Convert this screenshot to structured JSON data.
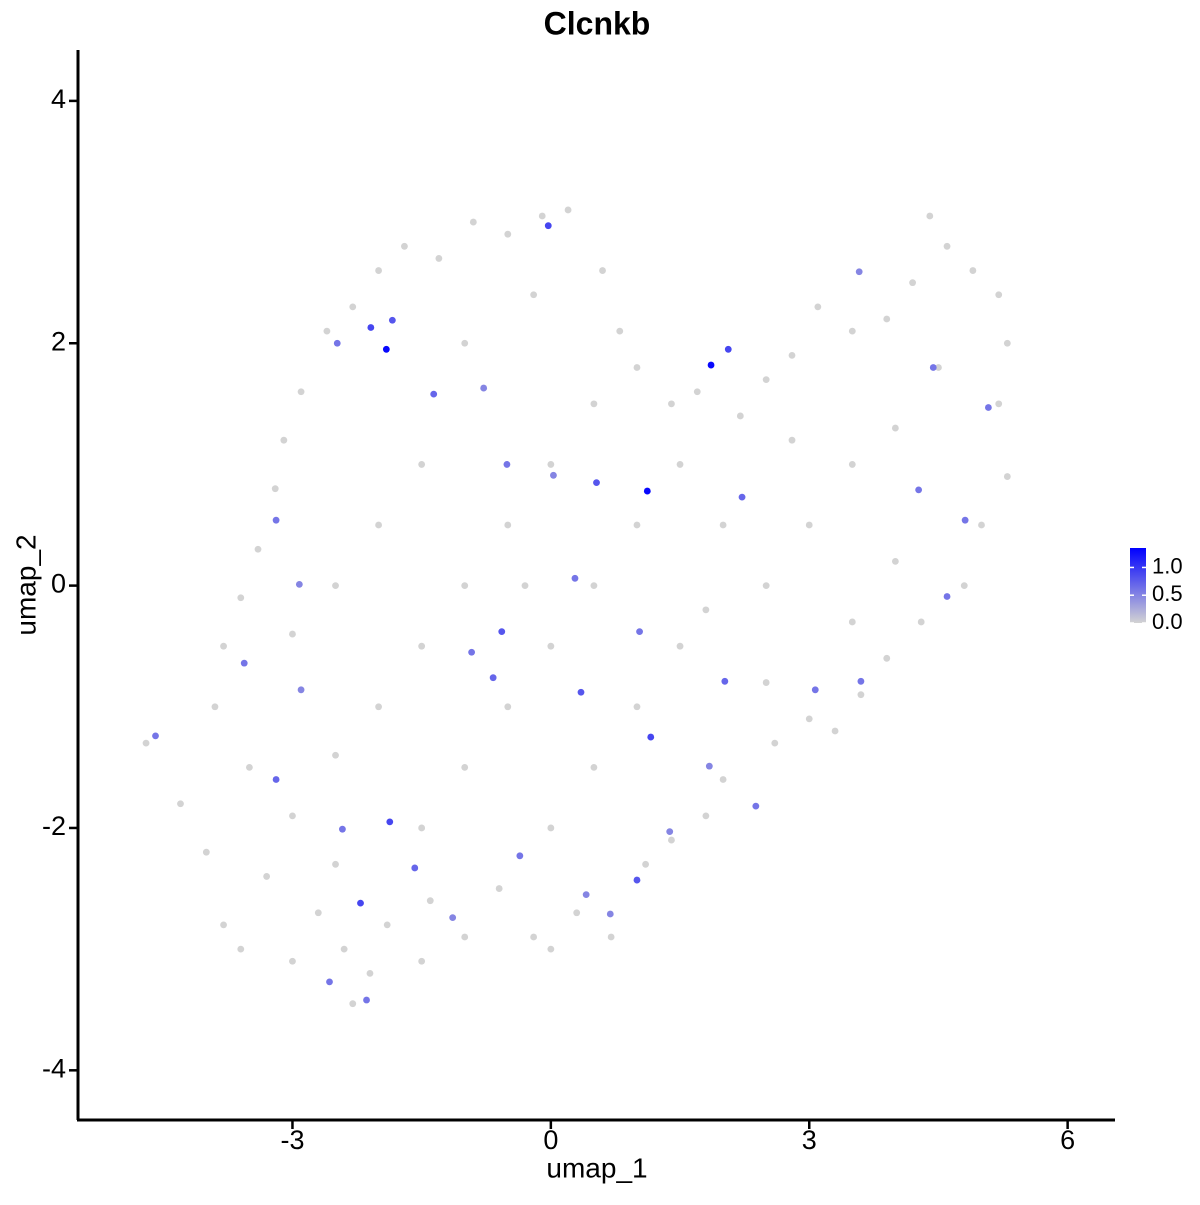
{
  "chart_data": {
    "type": "scatter",
    "title": "Clcnkb",
    "x_label": "umap_1",
    "y_label": "umap_2",
    "xlim": [
      -5.49,
      6.55
    ],
    "ylim": [
      -4.41,
      4.42
    ],
    "xticks": [
      -3,
      0,
      3,
      6
    ],
    "yticks": [
      -4,
      -2,
      0,
      2,
      4
    ],
    "color_low": "#d3d3d3",
    "color_high": "#0000ff",
    "color_lim": [
      0,
      1.35
    ],
    "color_ticks": [
      {
        "value": 0,
        "label": "0.0"
      },
      0.5,
      {
        "value": 1,
        "label": "1.0"
      }
    ],
    "x": [
      -4.7,
      -4.3,
      -4.0,
      -3.8,
      -3.6,
      -3.3,
      -3.0,
      -2.7,
      -2.4,
      -2.3,
      -2.1,
      -1.9,
      -1.5,
      -1.4,
      -1.0,
      -0.6,
      -0.2,
      0.0,
      0.3,
      0.7,
      1.1,
      1.4,
      1.8,
      2.0,
      2.6,
      3.0,
      3.3,
      3.6,
      3.9,
      4.3,
      4.8,
      5.0,
      5.3,
      5.2,
      5.3,
      5.2,
      4.9,
      4.6,
      4.4,
      4.2,
      3.9,
      3.5,
      3.1,
      2.8,
      2.5,
      2.2,
      1.7,
      1.4,
      1.0,
      0.8,
      0.6,
      0.2,
      -0.1,
      -0.5,
      -0.9,
      -1.3,
      -1.7,
      -2.0,
      -2.3,
      -2.6,
      -2.9,
      -3.1,
      -3.2,
      -3.4,
      -3.6,
      -3.8,
      -3.9,
      -3.5,
      -3.0,
      -2.5,
      -2.0,
      -1.5,
      -1.0,
      -0.5,
      0.0,
      0.5,
      -1.5,
      -2.0,
      -2.5,
      -1.0,
      -0.5,
      0.0,
      0.5,
      1.0,
      1.5,
      2.0,
      2.5,
      3.0,
      3.5,
      4.0,
      4.5,
      3.5,
      2.5,
      1.5,
      1.0,
      0.5,
      0.0,
      -1.5,
      -2.5,
      -3.0,
      -1.0,
      -0.2,
      2.8,
      4.0,
      1.8,
      -0.3,
      -1.91,
      1.86,
      1.12,
      -2.09,
      -1.84,
      -0.03,
      2.06,
      0.53,
      -0.57,
      0.35,
      1.16,
      1.0,
      -2.21,
      -1.87,
      -3.19,
      -4.59,
      -3.56,
      -3.19,
      -2.48,
      -1.36,
      -0.78,
      -0.51,
      0.03,
      0.28,
      1.03,
      2.02,
      3.07,
      3.6,
      4.6,
      4.27,
      4.44,
      3.58,
      2.38,
      -0.36,
      -1.58,
      -2.42,
      -2.57,
      -2.14,
      -1.14,
      0.41,
      0.69,
      -2.9,
      -2.92,
      -0.92,
      -0.67,
      2.22,
      5.08,
      4.81,
      1.38,
      1.84
    ],
    "y": [
      -1.3,
      -1.8,
      -2.2,
      -2.8,
      -3.0,
      -2.4,
      -3.1,
      -2.7,
      -3.0,
      -3.45,
      -3.2,
      -2.8,
      -3.1,
      -2.6,
      -2.9,
      -2.5,
      -2.9,
      -3.0,
      -2.7,
      -2.9,
      -2.3,
      -2.1,
      -1.9,
      -1.6,
      -1.3,
      -1.1,
      -1.2,
      -0.9,
      -0.6,
      -0.3,
      0.0,
      0.5,
      0.9,
      1.5,
      2.0,
      2.4,
      2.6,
      2.8,
      3.05,
      2.5,
      2.2,
      2.1,
      2.3,
      1.9,
      1.7,
      1.4,
      1.6,
      1.5,
      1.8,
      2.1,
      2.6,
      3.1,
      3.05,
      2.9,
      3.0,
      2.7,
      2.8,
      2.6,
      2.3,
      2.1,
      1.6,
      1.2,
      0.8,
      0.3,
      -0.1,
      -0.5,
      -1.0,
      -1.5,
      -1.9,
      -1.4,
      -1.0,
      -0.5,
      0.0,
      0.5,
      1.0,
      1.5,
      1.0,
      0.5,
      0.0,
      -1.5,
      -1.0,
      -0.5,
      0.0,
      0.5,
      1.0,
      0.5,
      0.0,
      0.5,
      1.0,
      1.3,
      1.8,
      -0.3,
      -0.8,
      -0.5,
      -1.0,
      -1.5,
      -2.0,
      -2.0,
      -2.3,
      -0.4,
      2.0,
      2.4,
      1.2,
      0.2,
      -0.2,
      0.0,
      1.95,
      1.82,
      0.78,
      2.13,
      2.19,
      2.97,
      1.95,
      0.85,
      -0.38,
      -0.88,
      -1.25,
      -2.43,
      -2.62,
      -1.95,
      -1.6,
      -1.24,
      -0.64,
      0.54,
      2.0,
      1.58,
      1.63,
      1.0,
      0.91,
      0.06,
      -0.38,
      -0.79,
      -0.86,
      -0.79,
      -0.09,
      0.79,
      1.8,
      2.59,
      -1.82,
      -2.23,
      -2.33,
      -2.01,
      -3.27,
      -3.42,
      -2.74,
      -2.55,
      -2.71,
      -0.86,
      0.01,
      -0.55,
      -0.76,
      0.73,
      1.47,
      0.54,
      -2.03,
      -1.49
    ],
    "values": [
      0,
      0,
      0,
      0,
      0,
      0,
      0,
      0,
      0,
      0,
      0,
      0,
      0,
      0,
      0,
      0,
      0,
      0,
      0,
      0,
      0,
      0,
      0,
      0,
      0,
      0,
      0,
      0,
      0,
      0,
      0,
      0,
      0,
      0,
      0,
      0,
      0,
      0,
      0,
      0,
      0,
      0,
      0,
      0,
      0,
      0,
      0,
      0,
      0,
      0,
      0,
      0,
      0,
      0,
      0,
      0,
      0,
      0,
      0,
      0,
      0,
      0,
      0,
      0,
      0,
      0,
      0,
      0,
      0,
      0,
      0,
      0,
      0,
      0,
      0,
      0,
      0,
      0,
      0,
      0,
      0,
      0,
      0,
      0,
      0,
      0,
      0,
      0,
      0,
      0,
      0,
      0,
      0,
      0,
      0,
      0,
      0,
      0,
      0,
      0,
      0,
      0,
      0,
      0,
      0,
      0,
      1.3,
      1.3,
      1.3,
      0.9,
      0.8,
      0.9,
      0.9,
      0.8,
      0.8,
      0.8,
      0.9,
      0.8,
      0.9,
      0.9,
      0.7,
      0.6,
      0.6,
      0.6,
      0.6,
      0.7,
      0.5,
      0.6,
      0.5,
      0.6,
      0.6,
      0.7,
      0.6,
      0.6,
      0.6,
      0.6,
      0.6,
      0.5,
      0.6,
      0.6,
      0.7,
      0.6,
      0.6,
      0.6,
      0.5,
      0.5,
      0.5,
      0.5,
      0.5,
      0.6,
      0.7,
      0.7,
      0.6,
      0.6,
      0.5,
      0.5
    ]
  }
}
